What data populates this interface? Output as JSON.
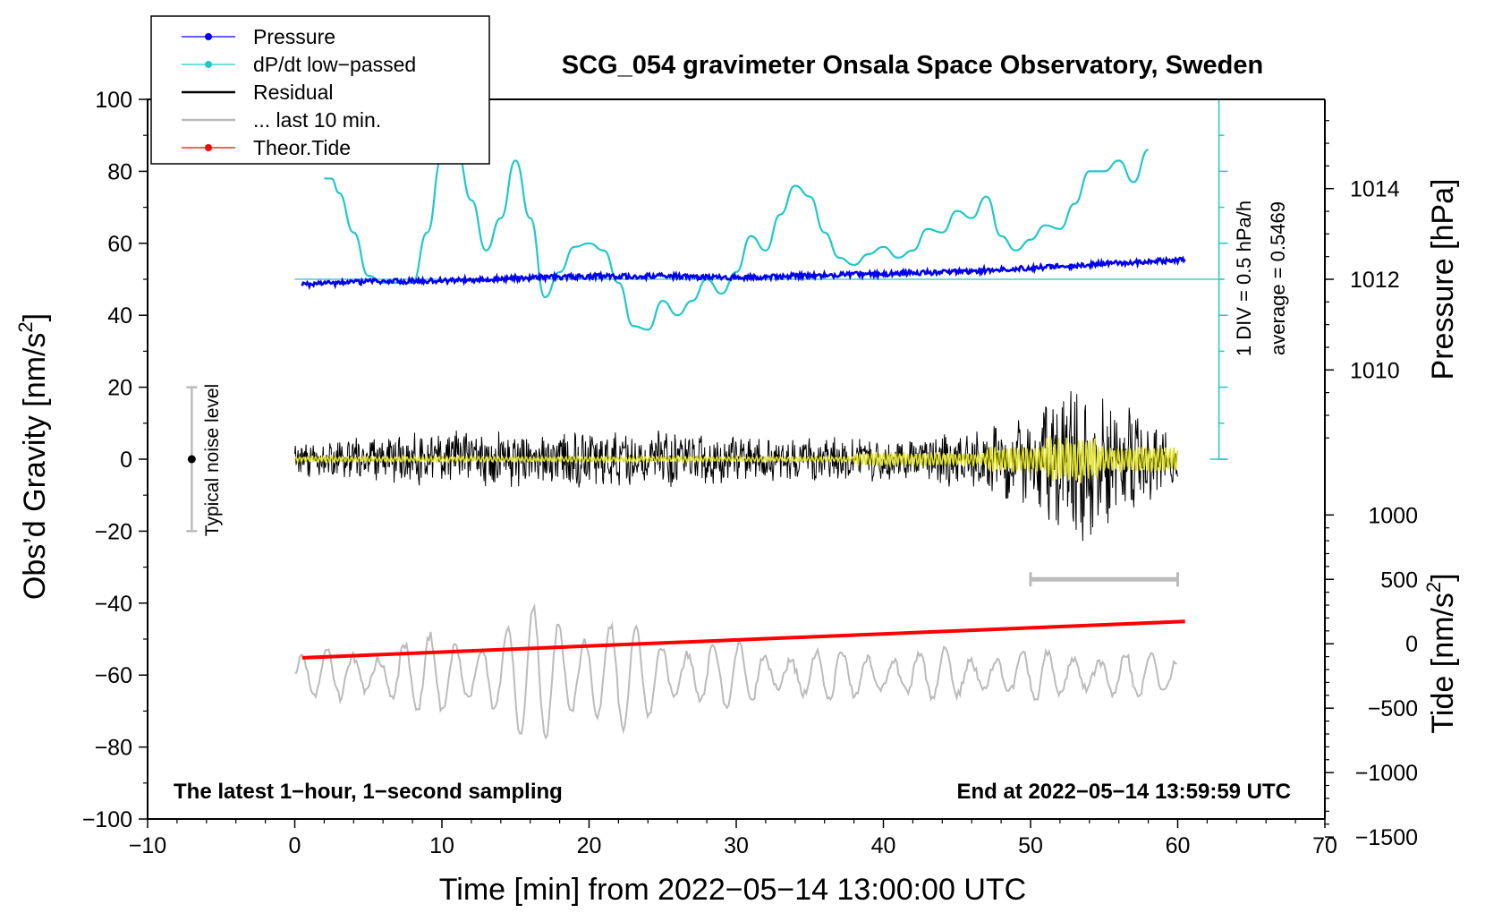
{
  "chart_data": {
    "type": "line",
    "title": "SCG_054 gravimeter Onsala Space Observatory, Sweden",
    "xlabel": "Time [min] from 2022−05−14 13:00:00 UTC",
    "ylabel": "Obs’d Gravity [nm/s",
    "ylabel_sup": "2",
    "ylabel_close": "]",
    "y2label_pressure": "Pressure [hPa]",
    "y2label_tide": "Tide [nm/s",
    "y2label_tide_sup": "2",
    "y2label_tide_close": "]",
    "xlim": [
      -10,
      70
    ],
    "ylim": [
      -100,
      100
    ],
    "x_ticks": [
      -10,
      0,
      10,
      20,
      30,
      40,
      50,
      60,
      70
    ],
    "x_tick_labels": [
      "−10",
      "0",
      "10",
      "20",
      "30",
      "40",
      "50",
      "60",
      "70"
    ],
    "y_ticks": [
      -100,
      -80,
      -60,
      -40,
      -20,
      0,
      20,
      40,
      60,
      80,
      100
    ],
    "y_tick_labels": [
      "−100",
      "−80",
      "−60",
      "−40",
      "−20",
      "0",
      "20",
      "40",
      "60",
      "80",
      "100"
    ],
    "pressure_ticks": [
      1010,
      1012,
      1014
    ],
    "pressure_tick_labels": [
      "1010",
      "1012",
      "1014"
    ],
    "tide_ticks": [
      -1500,
      -1000,
      -500,
      0,
      500,
      1000
    ],
    "tide_tick_labels": [
      "−1500",
      "−1000",
      "−500",
      "0",
      "500",
      "1000"
    ],
    "legend": {
      "position": "top-left",
      "entries": [
        {
          "label": "Pressure",
          "color": "#0000ee",
          "marker": true
        },
        {
          "label": "dP/dt low−passed",
          "color": "#20c8c8",
          "marker": true
        },
        {
          "label": "Residual",
          "color": "#000000",
          "marker": false
        },
        {
          "label": "... last 10 min.",
          "color": "#bbbbbb",
          "marker": false
        },
        {
          "label": "Theor.Tide",
          "color": "#ff0000",
          "marker": true
        }
      ]
    },
    "annotations": {
      "noise_label": "Typical noise level",
      "noise_range": [
        -20,
        20
      ],
      "noise_x": -7,
      "dpdt_scale": "1 DIV = 0.5 hPa/h",
      "dpdt_average": "average = 0.5469",
      "bottom_left": "The latest 1−hour, 1−second sampling",
      "bottom_right": "End at 2022−05−14 13:59:59 UTC",
      "last10_bracket": [
        50,
        60
      ]
    },
    "series": [
      {
        "name": "Pressure",
        "color": "#0000ee",
        "x": [
          0.5,
          5,
          10,
          15,
          20,
          25,
          30,
          35,
          40,
          45,
          50,
          55,
          60.5
        ],
        "y": [
          48.5,
          49.3,
          49.6,
          50.3,
          50.8,
          50.9,
          50.5,
          51.0,
          51.5,
          52.1,
          53.1,
          54.3,
          55.4
        ]
      },
      {
        "name": "dP/dt low−passed",
        "color": "#20c8c8",
        "x": [
          2,
          2.5,
          3,
          4,
          5,
          6,
          7,
          8,
          9,
          10,
          11,
          12,
          13,
          14,
          15,
          16,
          17,
          18,
          19,
          20,
          21,
          22,
          23,
          24,
          25,
          26,
          27,
          28,
          29,
          30,
          31,
          32,
          33,
          34,
          35,
          36,
          37,
          38,
          39,
          40,
          41,
          42,
          43,
          44,
          45,
          46,
          47,
          48,
          49,
          50,
          51,
          52,
          53,
          54,
          55,
          56,
          57,
          58
        ],
        "y": [
          78,
          78,
          74,
          63,
          51,
          49,
          49,
          49,
          63,
          84,
          86,
          72,
          58,
          67,
          83,
          67,
          45,
          52,
          59,
          60,
          58,
          49,
          37,
          36,
          44,
          40,
          44,
          50,
          46,
          52,
          62,
          58,
          68,
          76,
          73,
          63,
          56,
          54,
          57,
          59,
          56,
          58,
          64,
          63,
          69,
          67,
          73,
          62,
          58,
          61,
          65,
          64,
          71,
          80,
          80,
          83,
          77,
          86
        ]
      },
      {
        "name": "Residual",
        "color": "#000000",
        "x": [
          0,
          5,
          10,
          15,
          20,
          25,
          30,
          35,
          40,
          45,
          48,
          50,
          52,
          53,
          54,
          56,
          58,
          60
        ],
        "y": [
          0,
          0,
          0,
          0,
          0,
          0,
          0,
          0,
          0,
          0,
          0,
          0,
          0,
          0,
          0,
          0,
          0,
          0
        ],
        "amplitude": [
          3,
          4,
          5,
          5,
          5,
          5,
          4,
          4,
          4,
          5,
          7,
          9,
          13,
          16,
          14,
          10,
          8,
          6
        ]
      },
      {
        "name": "Filtered residual",
        "color": "#e0e020",
        "x": [
          0,
          60
        ],
        "y": [
          0,
          0
        ]
      },
      {
        "name": "... last 10 min.",
        "color": "#bbbbbb",
        "x": [
          0,
          60
        ],
        "y": [
          -60,
          -60
        ],
        "amplitude_profile": {
          "x": [
            0,
            5,
            10,
            15,
            17,
            20,
            25,
            30,
            35,
            40,
            45,
            50,
            55,
            60
          ],
          "a": [
            6,
            8,
            12,
            16,
            22,
            18,
            12,
            9,
            7,
            7,
            7,
            7,
            7,
            6
          ]
        }
      },
      {
        "name": "Theor.Tide",
        "color": "#ff0000",
        "x": [
          0.5,
          60.5
        ],
        "y": [
          -55.2,
          -45.1
        ]
      }
    ]
  }
}
